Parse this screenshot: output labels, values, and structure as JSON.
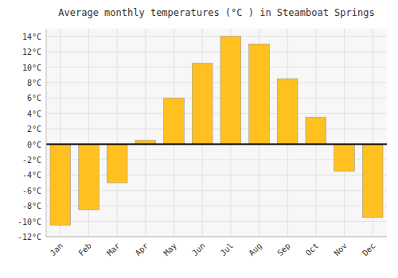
{
  "chart_data": {
    "type": "bar",
    "title": "Average monthly temperatures (°C ) in Steamboat Springs",
    "categories": [
      "Jan",
      "Feb",
      "Mar",
      "Apr",
      "May",
      "Jun",
      "Jul",
      "Aug",
      "Sep",
      "Oct",
      "Nov",
      "Dec"
    ],
    "values": [
      -10.5,
      -8.5,
      -5.0,
      0.5,
      6.0,
      10.5,
      14.0,
      13.0,
      8.5,
      3.5,
      -3.5,
      -9.5
    ],
    "color": "#FFC020",
    "ylim": [
      -12,
      15
    ],
    "yticks": [
      {
        "value": -12,
        "label": "-12°C"
      },
      {
        "value": -10,
        "label": "-10°C"
      },
      {
        "value": -8,
        "label": "-8°C"
      },
      {
        "value": -6,
        "label": "-6°C"
      },
      {
        "value": -4,
        "label": "-4°C"
      },
      {
        "value": -2,
        "label": "-2°C"
      },
      {
        "value": 0,
        "label": "0°C"
      },
      {
        "value": 2,
        "label": "2°C"
      },
      {
        "value": 4,
        "label": "4°C"
      },
      {
        "value": 6,
        "label": "6°C"
      },
      {
        "value": 8,
        "label": "8°C"
      },
      {
        "value": 10,
        "label": "10°C"
      },
      {
        "value": 12,
        "label": "12°C"
      },
      {
        "value": 14,
        "label": "14°C"
      }
    ],
    "grid": true
  }
}
